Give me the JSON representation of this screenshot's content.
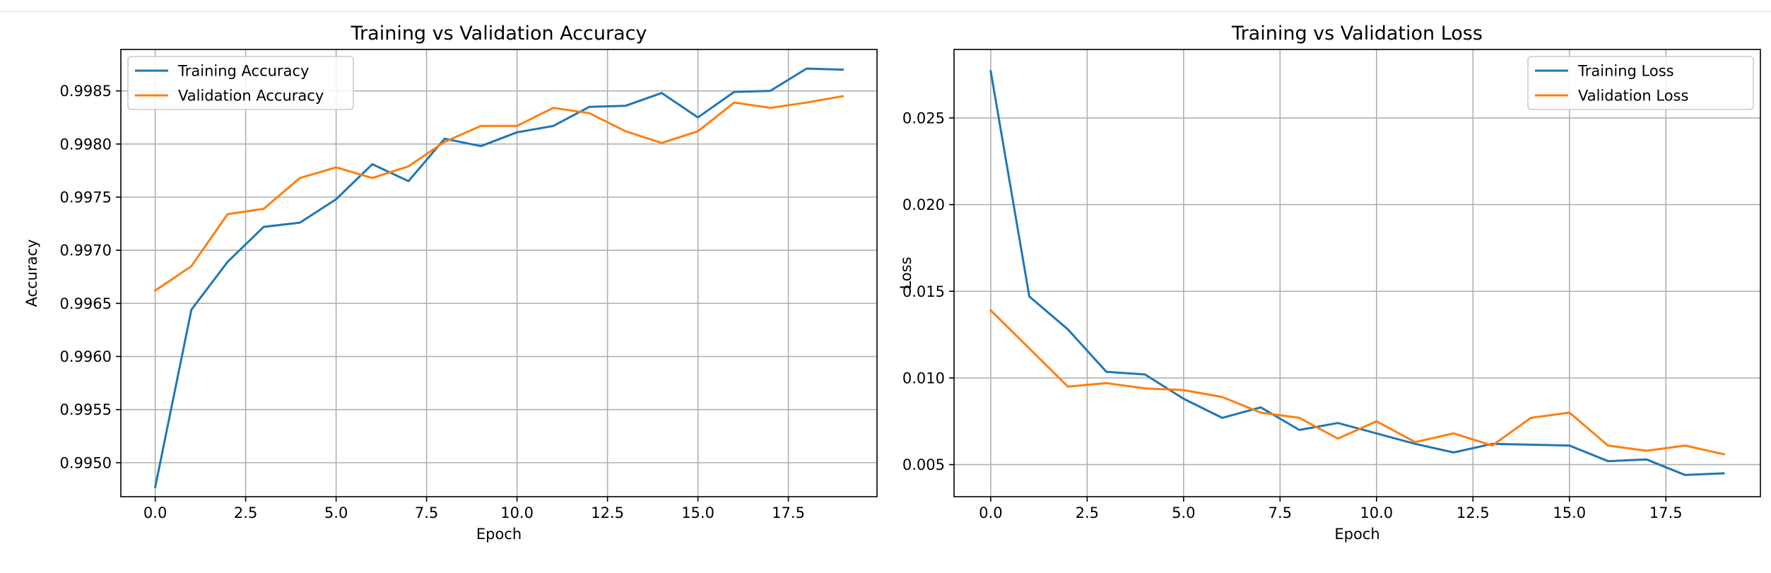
{
  "colors": {
    "training": "#1f77b4",
    "validation": "#ff7f0e",
    "grid": "#b0b0b0",
    "axis": "#000000"
  },
  "chart_data": [
    {
      "type": "line",
      "title": "Training vs Validation Accuracy",
      "xlabel": "Epoch",
      "ylabel": "Accuracy",
      "xlim": [
        -0.95,
        19.95
      ],
      "ylim": [
        0.99468,
        0.99889
      ],
      "xticks": [
        0,
        2.5,
        5,
        7.5,
        10,
        12.5,
        15,
        17.5
      ],
      "xtick_labels": [
        "0.0",
        "2.5",
        "5.0",
        "7.5",
        "10.0",
        "12.5",
        "15.0",
        "17.5"
      ],
      "yticks": [
        0.995,
        0.9955,
        0.996,
        0.9965,
        0.997,
        0.9975,
        0.998,
        0.9985
      ],
      "ytick_labels": [
        "0.9950",
        "0.9955",
        "0.9960",
        "0.9965",
        "0.9970",
        "0.9975",
        "0.9980",
        "0.9985"
      ],
      "grid": true,
      "legend": "upper left",
      "x": [
        0,
        1,
        2,
        3,
        4,
        5,
        6,
        7,
        8,
        9,
        10,
        11,
        12,
        13,
        14,
        15,
        16,
        17,
        18,
        19
      ],
      "series": [
        {
          "name": "Training Accuracy",
          "color": "#1f77b4",
          "values": [
            0.99477,
            0.99644,
            0.99689,
            0.99722,
            0.99726,
            0.99748,
            0.99781,
            0.99765,
            0.99805,
            0.99798,
            0.99811,
            0.99817,
            0.99835,
            0.99836,
            0.99848,
            0.99825,
            0.99849,
            0.9985,
            0.99871,
            0.9987
          ]
        },
        {
          "name": "Validation Accuracy",
          "color": "#ff7f0e",
          "values": [
            0.99662,
            0.99685,
            0.99734,
            0.99739,
            0.99768,
            0.99778,
            0.99768,
            0.99779,
            0.99802,
            0.99817,
            0.99817,
            0.99834,
            0.99829,
            0.99812,
            0.99801,
            0.99812,
            0.99839,
            0.99834,
            0.99839,
            0.99845
          ]
        }
      ]
    },
    {
      "type": "line",
      "title": "Training vs Validation Loss",
      "xlabel": "Epoch",
      "ylabel": "Loss",
      "xlim": [
        -0.95,
        19.95
      ],
      "ylim": [
        0.00315,
        0.02895
      ],
      "xticks": [
        0,
        2.5,
        5,
        7.5,
        10,
        12.5,
        15,
        17.5
      ],
      "xtick_labels": [
        "0.0",
        "2.5",
        "5.0",
        "7.5",
        "10.0",
        "12.5",
        "15.0",
        "17.5"
      ],
      "yticks": [
        0.005,
        0.01,
        0.015,
        0.02,
        0.025
      ],
      "ytick_labels": [
        "0.005",
        "0.010",
        "0.015",
        "0.020",
        "0.025"
      ],
      "grid": true,
      "legend": "upper right",
      "x": [
        0,
        1,
        2,
        3,
        4,
        5,
        6,
        7,
        8,
        9,
        10,
        11,
        12,
        13,
        14,
        15,
        16,
        17,
        18,
        19
      ],
      "series": [
        {
          "name": "Training Loss",
          "color": "#1f77b4",
          "values": [
            0.0277,
            0.0147,
            0.0128,
            0.01035,
            0.0102,
            0.0088,
            0.0077,
            0.0083,
            0.007,
            0.0074,
            0.0068,
            0.0062,
            0.0057,
            0.0062,
            0.00615,
            0.0061,
            0.0052,
            0.0053,
            0.0044,
            0.0045
          ]
        },
        {
          "name": "Validation Loss",
          "color": "#ff7f0e",
          "values": [
            0.0139,
            0.0117,
            0.0095,
            0.0097,
            0.0094,
            0.0093,
            0.0089,
            0.008,
            0.0077,
            0.0065,
            0.0075,
            0.0063,
            0.0068,
            0.0061,
            0.0077,
            0.008,
            0.0061,
            0.0058,
            0.0061,
            0.0056
          ]
        }
      ]
    }
  ]
}
